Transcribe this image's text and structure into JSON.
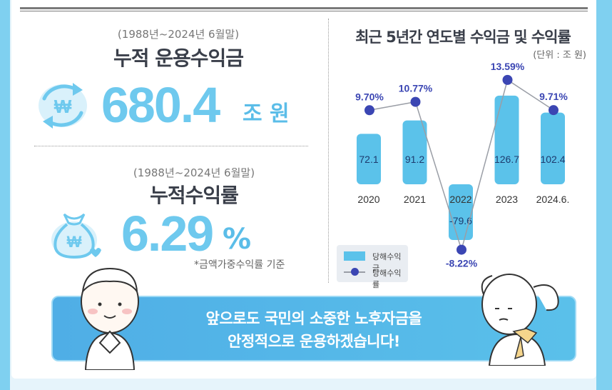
{
  "left_panel": {
    "cumulative_income": {
      "period": "(1988년~2024년 6월말)",
      "label": "누적 운용수익금",
      "value": "680.4",
      "unit": "조 원"
    },
    "cumulative_return": {
      "period": "(1988년~2024년 6월말)",
      "label": "누적수익률",
      "value": "6.29",
      "unit": "%",
      "footnote": "*금액가중수익률 기준"
    },
    "won_symbol": "₩"
  },
  "chart_data": {
    "type": "bar",
    "title": "최근 5년간 연도별 수익금 및 수익률",
    "unit_note": "(단위 : 조 원)",
    "categories": [
      "2020",
      "2021",
      "2022",
      "2023",
      "2024.6."
    ],
    "series": [
      {
        "name": "당해수익금",
        "type": "bar",
        "values": [
          72.1,
          91.2,
          -79.6,
          126.7,
          102.4
        ],
        "labels": [
          "72.1",
          "91.2",
          "-79.6",
          "126.7",
          "102.4"
        ],
        "color": "#5bc2ea"
      },
      {
        "name": "당해수익률",
        "type": "line",
        "values": [
          9.7,
          10.77,
          -8.22,
          13.59,
          9.71
        ],
        "labels": [
          "9.70%",
          "10.77%",
          "-8.22%",
          "13.59%",
          "9.71%"
        ],
        "color": "#3b46b3"
      }
    ],
    "legend": "bottom-left"
  },
  "banner": {
    "line1": "앞으로도 국민의 소중한 노후자금을",
    "line2": "안정적으로 운용하겠습니다!"
  },
  "colors": {
    "accent": "#6ec9ee",
    "bar": "#5bc2ea",
    "line": "#3b46b3",
    "banner": "#4faee6"
  },
  "icons": [
    "won-cycle-icon",
    "money-bag-icon",
    "person-bowing-icon",
    "person-thinking-icon"
  ]
}
